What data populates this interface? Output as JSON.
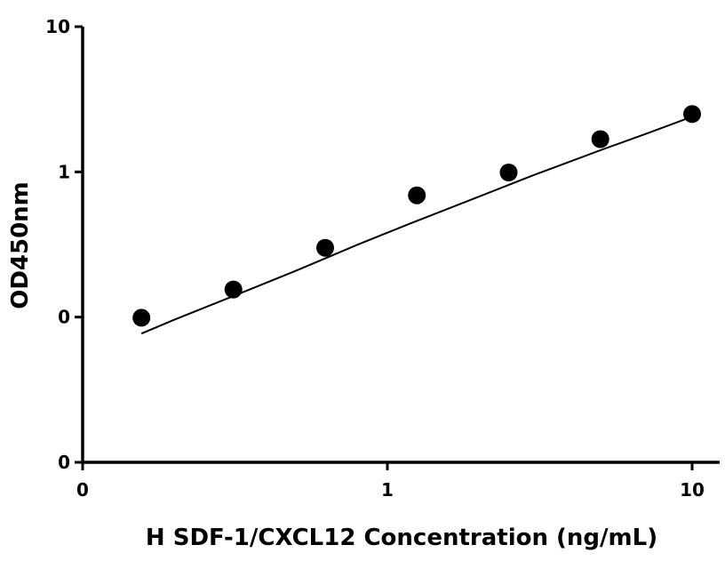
{
  "chart_data": {
    "type": "scatter",
    "title": "",
    "xlabel": "H SDF-1/CXCL12 Concentration (ng/mL)",
    "ylabel": "OD450nm",
    "x_scale": "log",
    "y_scale": "log",
    "xlim": [
      0.1,
      12
    ],
    "ylim": [
      0.01,
      10
    ],
    "x_ticks": [
      {
        "value": 0.1,
        "label": "0"
      },
      {
        "value": 1,
        "label": "1"
      },
      {
        "value": 10,
        "label": "10"
      }
    ],
    "y_ticks": [
      {
        "value": 0.01,
        "label": "0"
      },
      {
        "value": 0.1,
        "label": "0"
      },
      {
        "value": 1,
        "label": "1"
      },
      {
        "value": 10,
        "label": "10"
      }
    ],
    "grid": false,
    "legend": "none",
    "series": [
      {
        "x": [
          0.156,
          0.3125,
          0.625,
          1.25,
          2.5,
          5,
          10
        ],
        "y": [
          0.099,
          0.155,
          0.3,
          0.69,
          0.99,
          1.68,
          2.5
        ]
      }
    ],
    "fit": {
      "type": "curve",
      "x": [
        0.156,
        0.2,
        0.3,
        0.5,
        0.8,
        1.2,
        2,
        3,
        5,
        7,
        10
      ],
      "y": [
        0.077,
        0.096,
        0.135,
        0.208,
        0.316,
        0.445,
        0.676,
        0.946,
        1.41,
        1.82,
        2.4
      ]
    },
    "colors": {
      "points": "#000000",
      "line": "#000000",
      "axes": "#000000"
    }
  }
}
